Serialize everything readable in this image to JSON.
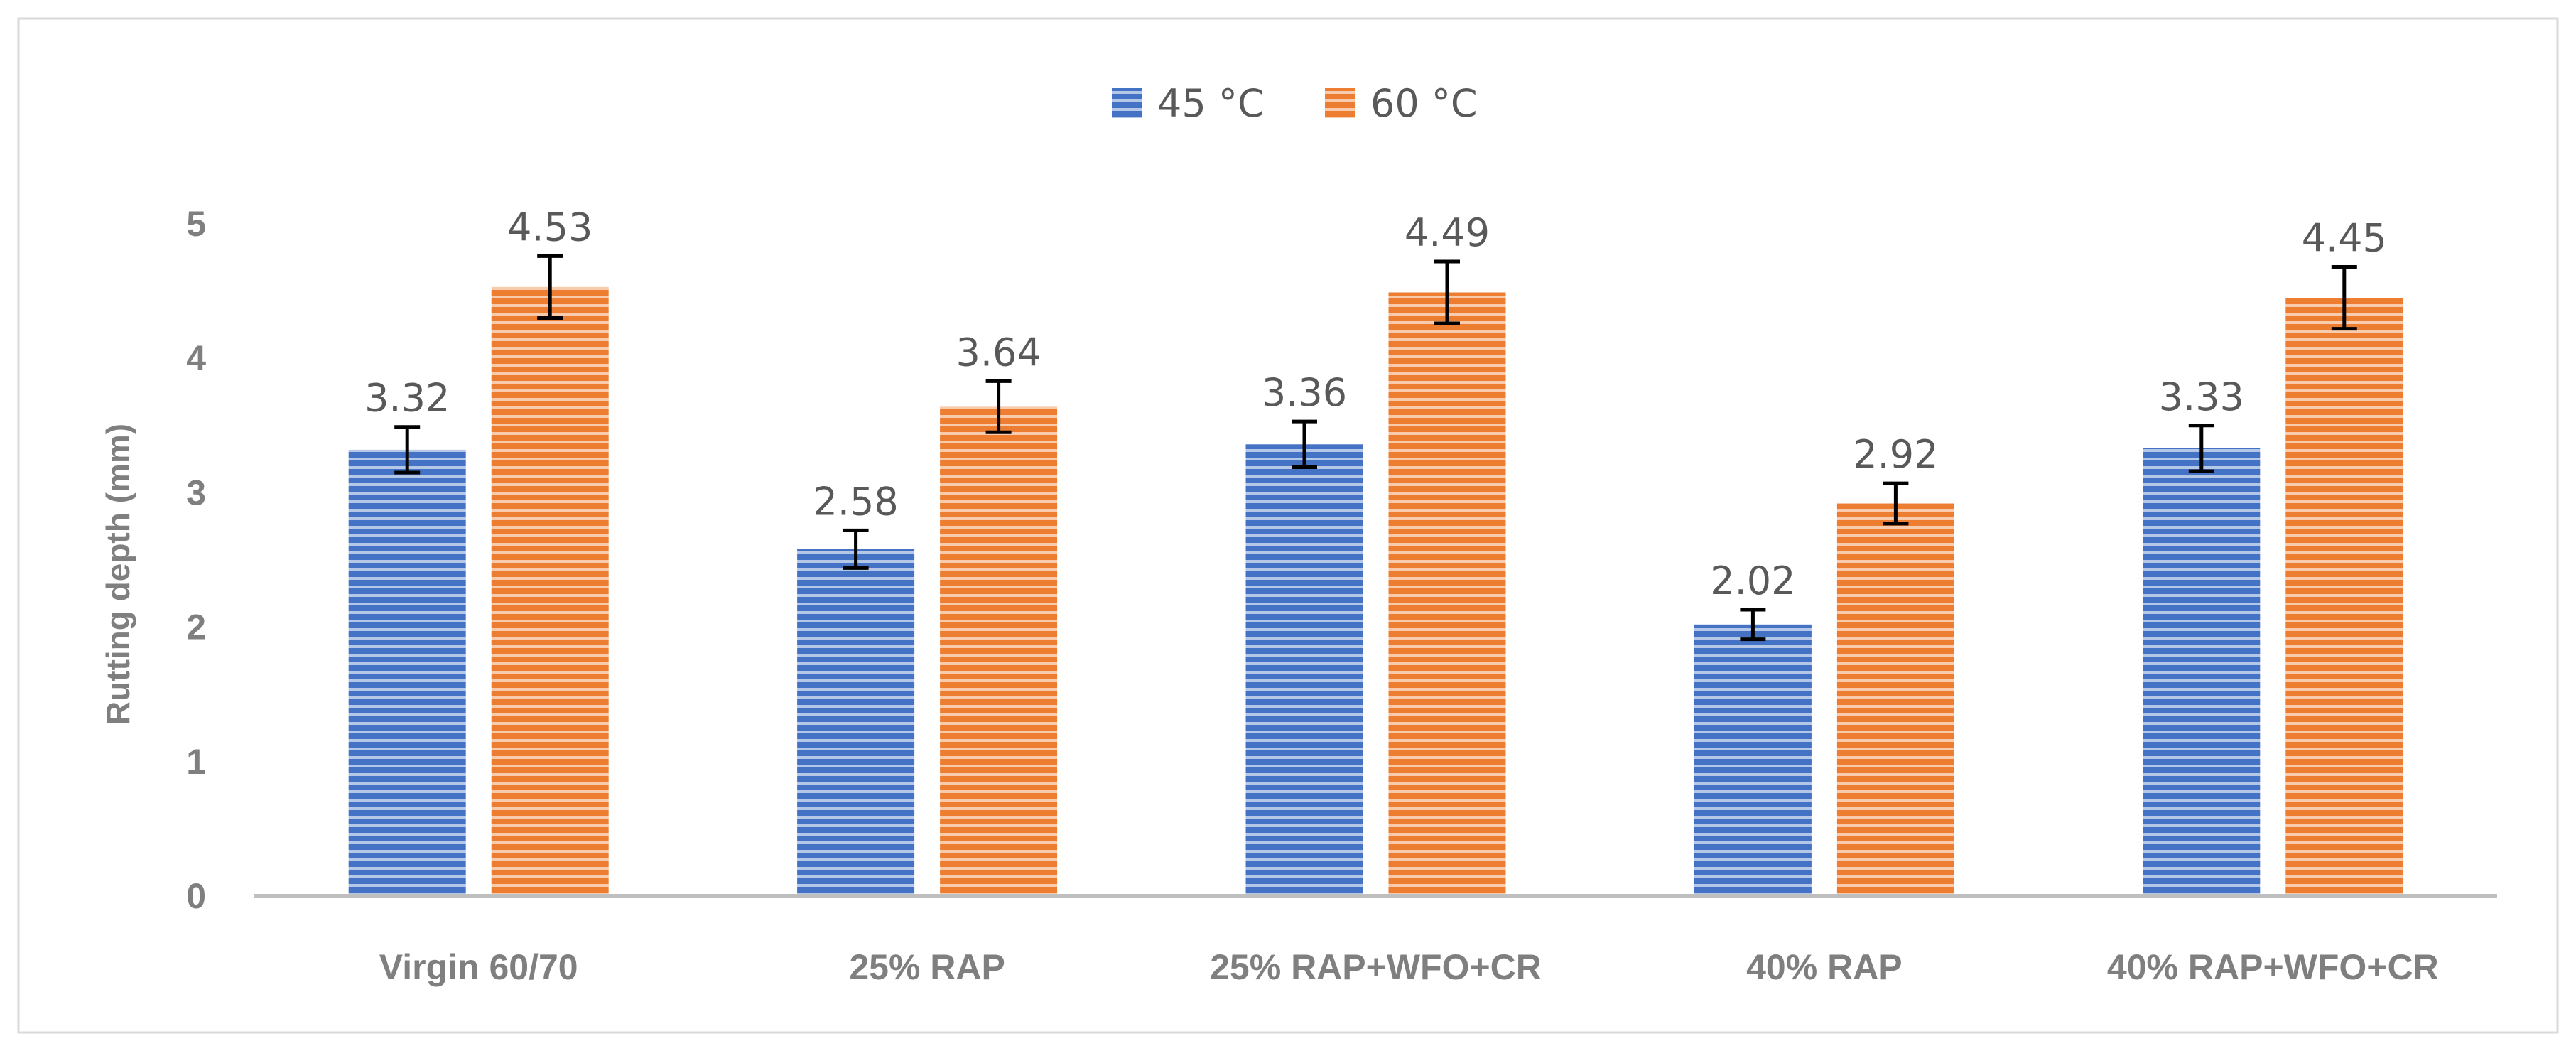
{
  "chart_data": {
    "type": "bar",
    "title": "",
    "xlabel": "",
    "ylabel": "Rutting depth (mm)",
    "ylim": [
      0,
      5
    ],
    "yticks": [
      0,
      1,
      2,
      3,
      4,
      5
    ],
    "grid": false,
    "legend_position": "top-center",
    "categories": [
      "Virgin 60/70",
      "25% RAP",
      "25% RAP+WFO+CR",
      "40% RAP",
      "40% RAP+WFO+CR"
    ],
    "series": [
      {
        "name": "45 °C",
        "color": "#4472c4",
        "values": [
          3.32,
          2.58,
          3.36,
          2.02,
          3.33
        ],
        "labels": [
          "3.32",
          "2.58",
          "3.36",
          "2.02",
          "3.33"
        ],
        "error": [
          0.17,
          0.14,
          0.17,
          0.11,
          0.17
        ]
      },
      {
        "name": "60 °C",
        "color": "#ed7d31",
        "values": [
          4.53,
          3.64,
          4.49,
          2.92,
          4.45
        ],
        "labels": [
          "4.53",
          "3.64",
          "4.49",
          "2.92",
          "4.45"
        ],
        "error": [
          0.23,
          0.19,
          0.23,
          0.15,
          0.23
        ]
      }
    ]
  }
}
